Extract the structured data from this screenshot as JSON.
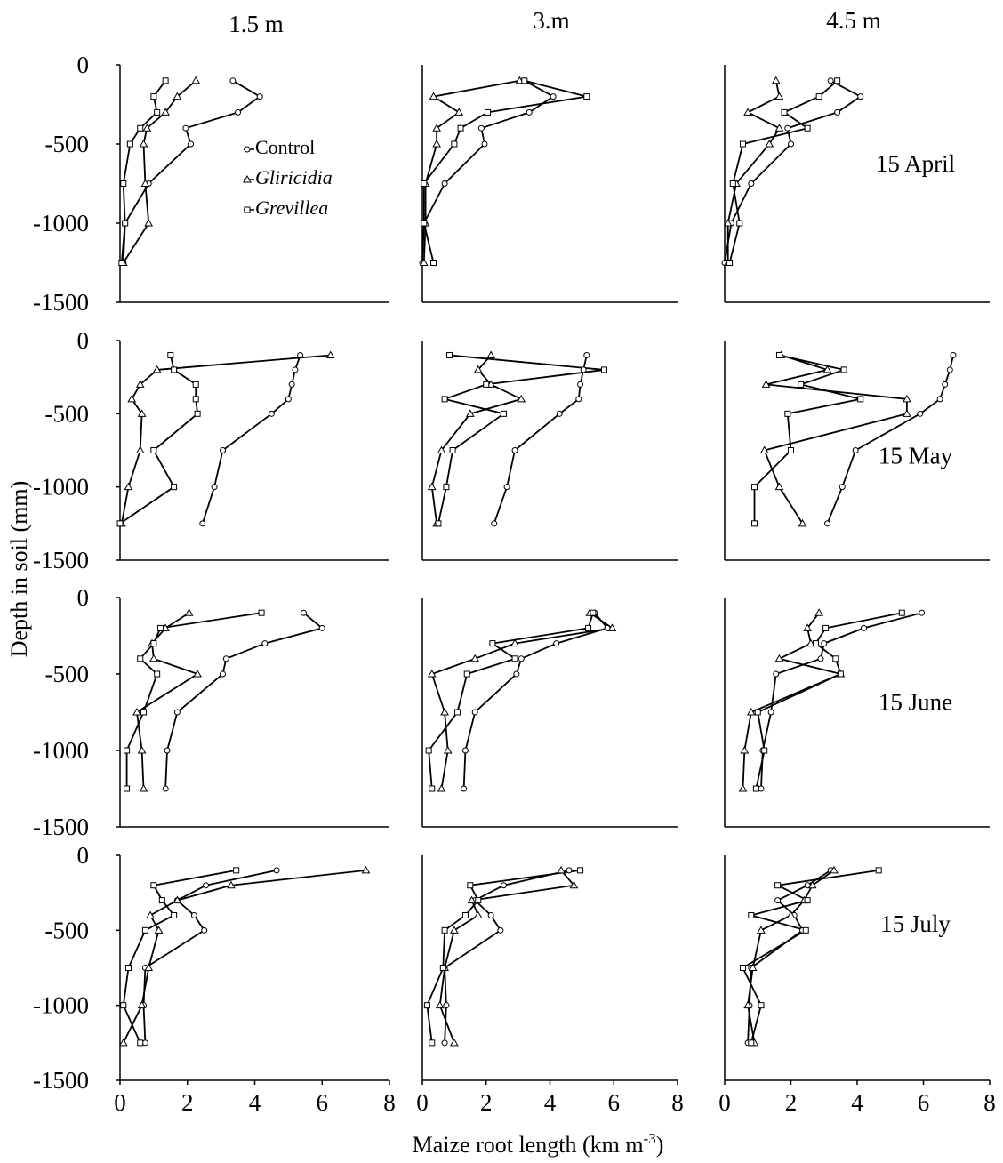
{
  "column_titles": [
    "1.5 m",
    "3.m",
    "4.5 m"
  ],
  "y_label": "Depth in soil (mm)",
  "x_label": {
    "text": "Maize root length (km m",
    "sup": "-3",
    "end": ")"
  },
  "legend": [
    {
      "name": "Control",
      "marker": "circle",
      "italic": false
    },
    {
      "name": "Gliricidia",
      "marker": "triangle",
      "italic": true
    },
    {
      "name": "Grevillea",
      "marker": "square",
      "italic": true
    }
  ],
  "chart_data": [
    {
      "type": "line",
      "xlim": [
        0,
        8
      ],
      "ylim": [
        -1500,
        0
      ],
      "yticks": [
        0,
        -500,
        -1000,
        -1500
      ],
      "color": "#000000",
      "y": [
        -100,
        -200,
        -300,
        -400,
        -500,
        -750,
        -1000,
        -1250
      ],
      "series": [
        {
          "values": [
            3.35,
            4.15,
            3.5,
            1.95,
            2.1,
            0.85,
            0.15,
            0.1
          ]
        },
        {
          "values": [
            2.25,
            1.7,
            1.35,
            0.8,
            0.7,
            0.75,
            0.85,
            0.1
          ]
        },
        {
          "values": [
            1.35,
            1.0,
            1.1,
            0.6,
            0.3,
            0.1,
            0.15,
            0.05
          ]
        }
      ]
    },
    {
      "type": "line",
      "xlim": [
        0,
        8
      ],
      "ylim": [
        -1500,
        0
      ],
      "color": "#000000",
      "y": [
        -100,
        -200,
        -300,
        -400,
        -500,
        -750,
        -1000,
        -1250
      ],
      "series": [
        {
          "values": [
            3.2,
            4.1,
            3.35,
            1.85,
            1.95,
            0.7,
            0.05,
            0
          ]
        },
        {
          "values": [
            3.05,
            0.35,
            1.15,
            0.45,
            0.45,
            0.1,
            0.1,
            0.05
          ]
        },
        {
          "values": [
            3.2,
            5.15,
            2.05,
            1.2,
            1.0,
            0.05,
            0.05,
            0.35
          ]
        }
      ]
    },
    {
      "type": "line",
      "xlim": [
        0,
        8
      ],
      "ylim": [
        -1500,
        0
      ],
      "color": "#000000",
      "annotation": "15 April",
      "y": [
        -100,
        -200,
        -300,
        -400,
        -500,
        -750,
        -1000,
        -1250
      ],
      "series": [
        {
          "values": [
            3.2,
            4.1,
            3.4,
            1.9,
            2.0,
            0.8,
            0.2,
            0
          ]
        },
        {
          "values": [
            1.55,
            1.65,
            0.7,
            1.65,
            1.35,
            0.35,
            0.1,
            0.1
          ]
        },
        {
          "values": [
            3.4,
            2.85,
            1.8,
            2.5,
            0.55,
            0.25,
            0.45,
            0.15
          ]
        }
      ]
    },
    {
      "type": "line",
      "xlim": [
        0,
        8
      ],
      "ylim": [
        -1500,
        0
      ],
      "yticks": [
        0,
        -500,
        -1000,
        -1500
      ],
      "color": "#000000",
      "y": [
        -100,
        -200,
        -300,
        -400,
        -500,
        -750,
        -1000,
        -1250
      ],
      "series": [
        {
          "values": [
            5.35,
            5.2,
            5.1,
            5.0,
            4.5,
            3.05,
            2.8,
            2.45
          ]
        },
        {
          "values": [
            6.25,
            1.1,
            0.6,
            0.35,
            0.65,
            0.6,
            0.25,
            0.05
          ]
        },
        {
          "values": [
            1.5,
            1.6,
            2.25,
            2.25,
            2.3,
            1.0,
            1.6,
            0
          ]
        }
      ]
    },
    {
      "type": "line",
      "xlim": [
        0,
        8
      ],
      "ylim": [
        -1500,
        0
      ],
      "color": "#000000",
      "y": [
        -100,
        -200,
        -300,
        -400,
        -500,
        -750,
        -1000,
        -1250
      ],
      "series": [
        {
          "values": [
            5.15,
            5.05,
            4.95,
            4.9,
            4.3,
            2.9,
            2.65,
            2.25
          ]
        },
        {
          "values": [
            2.15,
            1.75,
            2.15,
            3.1,
            1.5,
            0.6,
            0.3,
            0.45
          ]
        },
        {
          "values": [
            0.85,
            5.7,
            2.0,
            0.7,
            2.55,
            0.95,
            0.75,
            0.5
          ]
        }
      ]
    },
    {
      "type": "line",
      "xlim": [
        0,
        8
      ],
      "ylim": [
        -1500,
        0
      ],
      "color": "#000000",
      "annotation": "15 May",
      "y": [
        -100,
        -200,
        -300,
        -400,
        -500,
        -750,
        -1000,
        -1250
      ],
      "series": [
        {
          "values": [
            6.9,
            6.8,
            6.65,
            6.5,
            5.9,
            3.95,
            3.55,
            3.1
          ]
        },
        {
          "values": [
            1.7,
            3.1,
            1.25,
            5.5,
            5.5,
            1.2,
            1.65,
            2.35
          ]
        },
        {
          "values": [
            1.65,
            3.6,
            2.3,
            4.1,
            1.9,
            2.0,
            0.9,
            0.9
          ]
        }
      ]
    },
    {
      "type": "line",
      "xlim": [
        0,
        8
      ],
      "ylim": [
        -1500,
        0
      ],
      "yticks": [
        0,
        -500,
        -1000,
        -1500
      ],
      "color": "#000000",
      "y": [
        -100,
        -200,
        -300,
        -400,
        -500,
        -750,
        -1000,
        -1250
      ],
      "series": [
        {
          "values": [
            5.45,
            6.0,
            4.3,
            3.15,
            3.05,
            1.7,
            1.4,
            1.35
          ]
        },
        {
          "values": [
            2.05,
            1.35,
            0.95,
            1.0,
            2.3,
            0.5,
            0.65,
            0.7
          ]
        },
        {
          "values": [
            4.2,
            1.2,
            1.0,
            0.6,
            1.1,
            0.7,
            0.2,
            0.2
          ]
        }
      ]
    },
    {
      "type": "line",
      "xlim": [
        0,
        8
      ],
      "ylim": [
        -1500,
        0
      ],
      "color": "#000000",
      "y": [
        -100,
        -200,
        -300,
        -400,
        -500,
        -750,
        -1000,
        -1250
      ],
      "series": [
        {
          "values": [
            5.4,
            5.8,
            4.2,
            3.1,
            2.95,
            1.65,
            1.35,
            1.3
          ]
        },
        {
          "values": [
            5.25,
            5.95,
            2.9,
            1.65,
            0.3,
            0.7,
            0.8,
            0.6
          ]
        },
        {
          "values": [
            5.35,
            5.2,
            2.2,
            2.9,
            1.4,
            1.1,
            0.2,
            0.3
          ]
        }
      ]
    },
    {
      "type": "line",
      "xlim": [
        0,
        8
      ],
      "ylim": [
        -1500,
        0
      ],
      "color": "#000000",
      "annotation": "15 June",
      "y": [
        -100,
        -200,
        -300,
        -400,
        -500,
        -750,
        -1000,
        -1250
      ],
      "series": [
        {
          "values": [
            5.95,
            4.2,
            3.0,
            2.9,
            1.55,
            1.4,
            1.15,
            1.1
          ]
        },
        {
          "values": [
            2.85,
            2.5,
            2.6,
            1.65,
            3.5,
            0.8,
            0.6,
            0.55
          ]
        },
        {
          "values": [
            5.35,
            3.05,
            2.75,
            3.35,
            3.5,
            1.0,
            1.2,
            0.95
          ]
        }
      ]
    },
    {
      "type": "line",
      "xlim": [
        0,
        8
      ],
      "ylim": [
        -1500,
        0
      ],
      "yticks": [
        0,
        -500,
        -1000,
        -1500
      ],
      "xticks": [
        0,
        2,
        4,
        6,
        8
      ],
      "color": "#000000",
      "y": [
        -100,
        -200,
        -300,
        -400,
        -500,
        -750,
        -1000,
        -1250
      ],
      "series": [
        {
          "values": [
            4.65,
            2.55,
            1.7,
            2.2,
            2.5,
            0.75,
            0.7,
            0.75
          ]
        },
        {
          "values": [
            7.3,
            3.3,
            1.7,
            0.9,
            1.15,
            0.85,
            0.65,
            0.1
          ]
        },
        {
          "values": [
            3.45,
            1.0,
            1.25,
            1.6,
            0.75,
            0.25,
            0.1,
            0.6
          ]
        }
      ]
    },
    {
      "type": "line",
      "xlim": [
        0,
        8
      ],
      "ylim": [
        -1500,
        0
      ],
      "xticks": [
        0,
        2,
        4,
        6,
        8
      ],
      "color": "#000000",
      "y": [
        -100,
        -200,
        -300,
        -400,
        -500,
        -750,
        -1000,
        -1250
      ],
      "series": [
        {
          "values": [
            4.6,
            2.55,
            1.65,
            2.15,
            2.45,
            0.7,
            0.75,
            0.7
          ]
        },
        {
          "values": [
            4.35,
            4.75,
            1.55,
            1.75,
            1.0,
            0.7,
            0.55,
            1.0
          ]
        },
        {
          "values": [
            4.95,
            1.5,
            1.75,
            1.35,
            0.7,
            0.65,
            0.15,
            0.3
          ]
        }
      ]
    },
    {
      "type": "line",
      "xlim": [
        0,
        8
      ],
      "ylim": [
        -1500,
        0
      ],
      "xticks": [
        0,
        2,
        4,
        6,
        8
      ],
      "color": "#000000",
      "annotation": "15 July",
      "y": [
        -100,
        -200,
        -300,
        -400,
        -500,
        -750,
        -1000,
        -1250
      ],
      "series": [
        {
          "values": [
            3.2,
            2.5,
            1.6,
            2.1,
            2.35,
            0.8,
            0.75,
            0.7
          ]
        },
        {
          "values": [
            3.3,
            2.65,
            2.4,
            2.0,
            1.1,
            0.85,
            0.7,
            0.9
          ]
        },
        {
          "values": [
            4.65,
            1.6,
            2.5,
            0.8,
            2.45,
            0.55,
            1.1,
            0.8
          ]
        }
      ]
    }
  ]
}
